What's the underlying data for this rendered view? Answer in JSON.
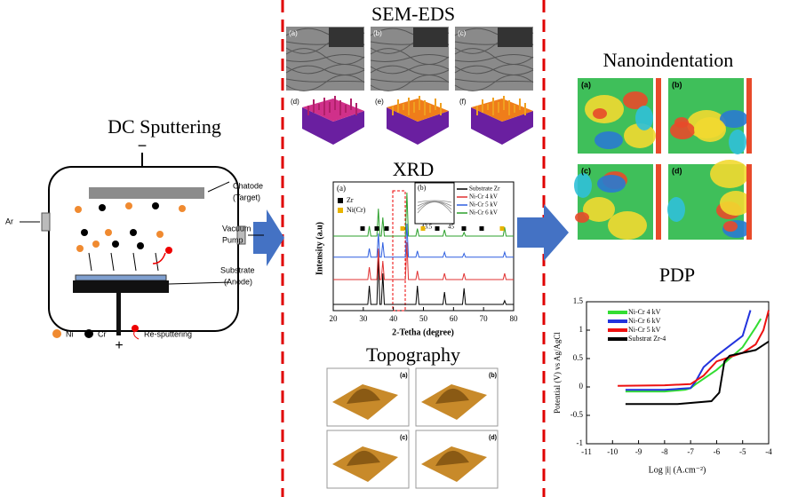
{
  "sputtering": {
    "title": "DC Sputtering",
    "minus": "−",
    "plus": "+",
    "ar": "Ar",
    "target": [
      "Chatode",
      "(Target)"
    ],
    "pump": [
      "Vacuum",
      "Pump"
    ],
    "substrate": [
      "Substrate",
      "(Anode)"
    ],
    "legend": [
      "Ni",
      "Cr",
      "Re-sputtering"
    ]
  },
  "sem_eds": {
    "title": "SEM-EDS",
    "panels": [
      "(a)",
      "(b)",
      "(c)",
      "(d)",
      "(e)",
      "(f)"
    ]
  },
  "xrd": {
    "type": "line",
    "title": "XRD",
    "xlabel": "2-Tetha (degree)",
    "ylabel": "Intensity (a.u)",
    "panel": "(a)",
    "inset": {
      "panel": "(b)",
      "ticks": [
        "43.5",
        "45"
      ]
    },
    "phases": [
      {
        "name": "Zr",
        "color": "#000000"
      },
      {
        "name": "Ni(Cr)",
        "color": "#e8b400"
      }
    ],
    "xlim": [
      20,
      80
    ],
    "xticks": [
      20,
      30,
      40,
      50,
      60,
      70,
      80
    ],
    "ylim": [
      0,
      100
    ],
    "x": [
      20,
      31.5,
      32,
      32.5,
      34.5,
      35,
      35.5,
      36,
      36.5,
      37,
      44,
      44.5,
      45,
      47.5,
      48,
      48.5,
      56.5,
      57,
      57.5,
      63,
      63.5,
      64,
      76.5,
      77,
      77.5,
      80
    ],
    "series": [
      {
        "name": "Substrate Zr",
        "color": "#000000",
        "values": [
          5,
          5,
          20,
          5,
          5,
          45,
          5,
          5,
          30,
          5,
          5,
          5,
          5,
          5,
          20,
          5,
          5,
          15,
          5,
          5,
          18,
          5,
          5,
          8,
          5,
          5
        ]
      },
      {
        "name": "Ni-Cr 4 kV",
        "color": "#e03030",
        "values": [
          25,
          25,
          35,
          25,
          25,
          50,
          25,
          25,
          40,
          25,
          25,
          55,
          25,
          25,
          32,
          25,
          25,
          30,
          25,
          25,
          30,
          25,
          25,
          30,
          25,
          25
        ]
      },
      {
        "name": "Ni-Cr 5 kV",
        "color": "#2f5fe0",
        "values": [
          43,
          43,
          50,
          43,
          43,
          62,
          43,
          43,
          55,
          43,
          43,
          70,
          43,
          43,
          48,
          43,
          43,
          47,
          43,
          43,
          46,
          43,
          43,
          47,
          43,
          43
        ]
      },
      {
        "name": "Ni-Cr 6 kV",
        "color": "#2ca02c",
        "values": [
          60,
          60,
          68,
          60,
          60,
          82,
          60,
          60,
          75,
          60,
          60,
          95,
          60,
          60,
          66,
          60,
          60,
          65,
          60,
          60,
          63,
          60,
          60,
          67,
          60,
          60
        ]
      }
    ]
  },
  "topography": {
    "title": "Topography",
    "panels": [
      "(a)",
      "(b)",
      "(c)",
      "(d)"
    ]
  },
  "nanoindentation": {
    "title": "Nanoindentation",
    "panels": [
      "(a)",
      "(b)",
      "(c)",
      "(d)"
    ]
  },
  "pdp": {
    "type": "line",
    "title": "PDP",
    "xlabel": "Log |i| (A.cm⁻²)",
    "ylabel": "Potential (V) vs Ag/AgCl",
    "xlim": [
      -11,
      -4
    ],
    "xticks": [
      -11,
      -10,
      -9,
      -8,
      -7,
      -6,
      -5,
      -4
    ],
    "ylim": [
      -1,
      1.5
    ],
    "yticks": [
      -1,
      -0.5,
      0,
      0.5,
      1,
      1.5
    ],
    "series": [
      {
        "name": "Ni-Cr 4 kV",
        "color": "#33dd33",
        "x": [
          -9.5,
          -8,
          -7.2,
          -7,
          -6.8,
          -6,
          -5,
          -4.5,
          -4.3
        ],
        "y": [
          -0.08,
          -0.08,
          -0.05,
          -0.02,
          0.05,
          0.3,
          0.7,
          1.05,
          1.2
        ]
      },
      {
        "name": "Ni-Cr 6 kV",
        "color": "#2233dd",
        "x": [
          -9.5,
          -8,
          -7,
          -6.8,
          -6.5,
          -6,
          -5,
          -4.7
        ],
        "y": [
          -0.05,
          -0.05,
          -0.02,
          0.1,
          0.35,
          0.55,
          0.9,
          1.35
        ]
      },
      {
        "name": "Ni-Cr 5 kV",
        "color": "#ee1111",
        "x": [
          -9.8,
          -8,
          -7,
          -6.5,
          -6,
          -5,
          -4.5,
          -4.2,
          -4
        ],
        "y": [
          0.02,
          0.03,
          0.05,
          0.2,
          0.45,
          0.6,
          0.75,
          1.0,
          1.35
        ]
      },
      {
        "name": "Substrat Zr-4",
        "color": "#000000",
        "x": [
          -9.5,
          -7.5,
          -6.2,
          -5.9,
          -5.7,
          -5.5,
          -5,
          -4.5,
          -4
        ],
        "y": [
          -0.3,
          -0.3,
          -0.25,
          -0.1,
          0.45,
          0.55,
          0.6,
          0.65,
          0.8
        ]
      }
    ]
  }
}
